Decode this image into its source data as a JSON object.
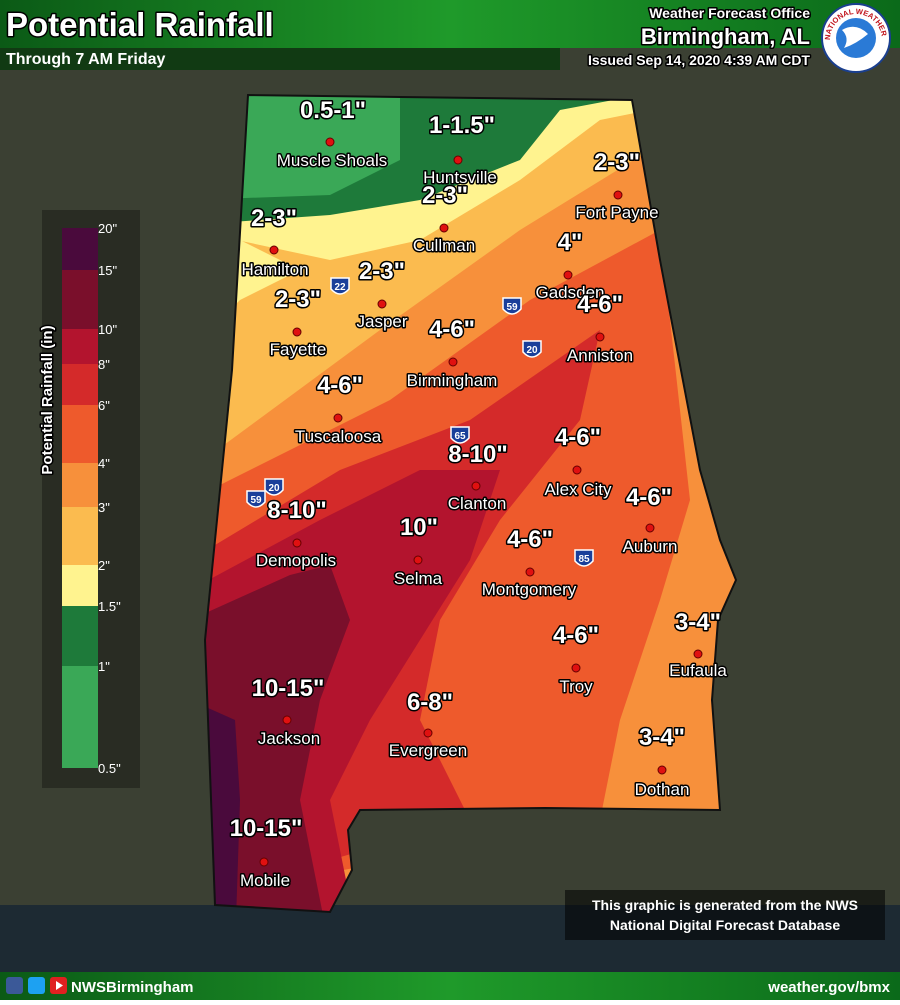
{
  "header": {
    "title": "Potential Rainfall",
    "subtitle": "Through 7 AM Friday",
    "office": "Weather Forecast Office",
    "location": "Birmingham, AL",
    "issued": "Issued Sep 14, 2020 4:39 AM CDT",
    "logo_text": "NATIONAL WEATHER SERVICE"
  },
  "legend": {
    "title": "Potential Rainfall (in)",
    "ticks": [
      "20\"",
      "15\"",
      "10\"",
      "8\"",
      "6\"",
      "4\"",
      "3\"",
      "2\"",
      "1.5\"",
      "1\"",
      "0.5\""
    ],
    "colors": [
      "#4a0a3c",
      "#7a0f2b",
      "#b3142e",
      "#d42a2a",
      "#ee5a2c",
      "#f7903b",
      "#fbbb4f",
      "#fff38f",
      "#1e7a3a",
      "#3aa857"
    ]
  },
  "cities": [
    {
      "name": "Muscle Shoals",
      "amount": "0.5-1\""
    },
    {
      "name": "Huntsville",
      "amount": "1-1.5\""
    },
    {
      "name": "Cullman",
      "amount": "2-3\""
    },
    {
      "name": "Fort Payne",
      "amount": "2-3\""
    },
    {
      "name": "Hamilton",
      "amount": "2-3\""
    },
    {
      "name": "Jasper",
      "amount": "2-3\""
    },
    {
      "name": "Gadsden",
      "amount": "4\""
    },
    {
      "name": "Fayette",
      "amount": "2-3\""
    },
    {
      "name": "Birmingham",
      "amount": "4-6\""
    },
    {
      "name": "Anniston",
      "amount": "4-6\""
    },
    {
      "name": "Tuscaloosa",
      "amount": "4-6\""
    },
    {
      "name": "Clanton",
      "amount": "8-10\""
    },
    {
      "name": "Alex City",
      "amount": "4-6\""
    },
    {
      "name": "Demopolis",
      "amount": "8-10\""
    },
    {
      "name": "Selma",
      "amount": "10\""
    },
    {
      "name": "Auburn",
      "amount": "4-6\""
    },
    {
      "name": "Montgomery",
      "amount": "4-6\""
    },
    {
      "name": "Troy",
      "amount": "4-6\""
    },
    {
      "name": "Eufaula",
      "amount": "3-4\""
    },
    {
      "name": "Jackson",
      "amount": "10-15\""
    },
    {
      "name": "Evergreen",
      "amount": "6-8\""
    },
    {
      "name": "Dothan",
      "amount": "3-4\""
    },
    {
      "name": "Mobile",
      "amount": "10-15\""
    }
  ],
  "interstates": [
    "22",
    "59",
    "20",
    "65",
    "20",
    "59",
    "85"
  ],
  "note": [
    "This graphic is generated from the NWS",
    "National Digital Forecast Database"
  ],
  "footer": {
    "handle": "NWSBirmingham",
    "website": "weather.gov/bmx"
  }
}
